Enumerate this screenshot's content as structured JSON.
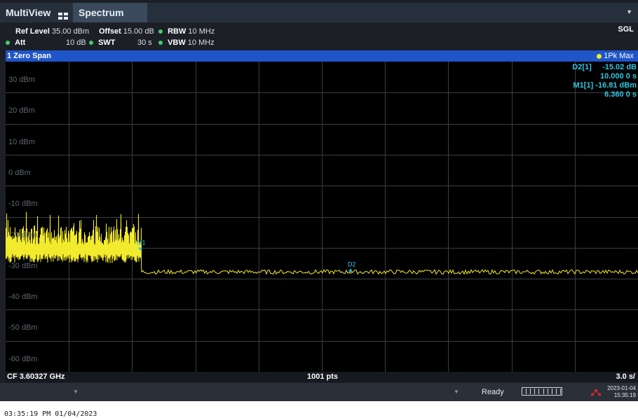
{
  "tabs": {
    "multiview": "MultiView",
    "spectrum": "Spectrum"
  },
  "settings": {
    "ref_level_label": "Ref Level",
    "ref_level_value": "35.00 dBm",
    "offset_label": "Offset",
    "offset_value": "15.00 dB",
    "rbw_label": "RBW",
    "rbw_value": "10 MHz",
    "att_label": "Att",
    "att_value": "10 dB",
    "swt_label": "SWT",
    "swt_value": "30 s",
    "vbw_label": "VBW",
    "vbw_value": "10 MHz",
    "mode": "SGL"
  },
  "window": {
    "title": "1 Zero Span",
    "trace": "1Pk Max"
  },
  "y_ticks": [
    "30 dBm",
    "20 dBm",
    "10 dBm",
    "0 dBm",
    "-10 dBm",
    "-20 dBm",
    "-30 dBm",
    "-40 dBm",
    "-50 dBm",
    "-60 dBm"
  ],
  "markers": {
    "d2_label": "D2[1]",
    "d2_level": "-15.02 dB",
    "d2_time": "10.000 0 s",
    "m1_label": "M1[1]",
    "m1_level": "-16.81 dBm",
    "m1_time": "6.360 0 s",
    "m1_tag": "M1",
    "d2_tag": "D2"
  },
  "footer": {
    "center_freq": "CF 3.60327 GHz",
    "points": "1001 pts",
    "span": "3.0 s/"
  },
  "status": {
    "ready": "Ready",
    "date": "2023-01-04",
    "time": "15:35:19"
  },
  "timestamp": "03:35:19 PM  01/04/2023",
  "colors": {
    "trace": "#f2ea2c",
    "marker": "#33c6e2",
    "window_header": "#1f55c8"
  }
}
